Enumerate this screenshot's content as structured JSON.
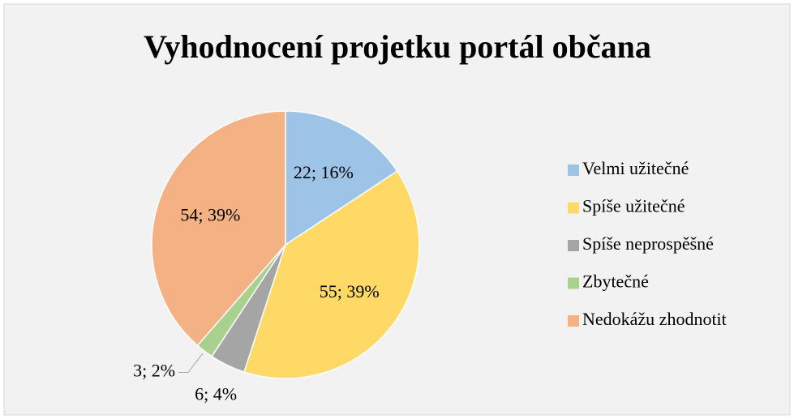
{
  "chart_data": {
    "type": "pie",
    "title": "Vyhodnocení projetku portál občana",
    "categories": [
      "Velmi užitečné",
      "Spíše užitečné",
      "Spíše neprospěšné",
      "Zbytečné",
      "Nedokážu zhodnotit"
    ],
    "values": [
      22,
      55,
      6,
      3,
      54
    ],
    "value_labels": [
      "22; 16%",
      "55; 39%",
      "6; 4%",
      "3; 2%",
      "54; 39%"
    ],
    "colors": [
      "#9dc3e6",
      "#ffd966",
      "#a5a5a5",
      "#a9d18e",
      "#f4b183"
    ],
    "legend": "right"
  }
}
